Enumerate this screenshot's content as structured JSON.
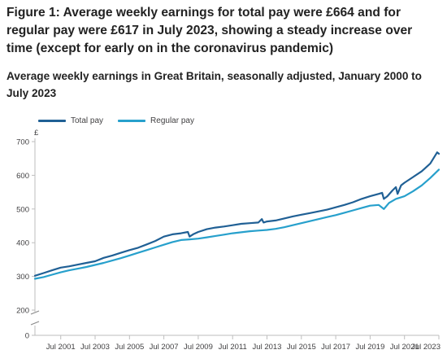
{
  "title": "Figure 1: Average weekly earnings for total pay were £664 and for regular pay were £617 in July 2023, showing a steady increase over time (except for early on in the coronavirus pandemic)",
  "subtitle": "Average weekly earnings in Great Britain, seasonally adjusted, January 2000 to July 2023",
  "colors": {
    "total": "#206095",
    "regular": "#27a0cc",
    "axis": "#bebebe",
    "text": "#414042"
  },
  "chart_data": {
    "type": "line",
    "ylabel": "£",
    "ylim": [
      0,
      700
    ],
    "yticks": [
      0,
      200,
      300,
      400,
      500,
      600,
      700
    ],
    "axis_break": true,
    "xlim": [
      2000.0,
      2023.5
    ],
    "xtick_labels": [
      "Jul 2001",
      "Jul 2003",
      "Jul 2005",
      "Jul 2007",
      "Jul 2009",
      "Jul 2011",
      "Jul 2013",
      "Jul 2015",
      "Jul 2017",
      "Jul 2019",
      "Jul 2021",
      "Jul 2023"
    ],
    "xtick_values": [
      2001.5,
      2003.5,
      2005.5,
      2007.5,
      2009.5,
      2011.5,
      2013.5,
      2015.5,
      2017.5,
      2019.5,
      2021.5,
      2023.5
    ],
    "grid": false,
    "legend": "top-left",
    "series": [
      {
        "name": "Total pay",
        "color": "#206095",
        "points": [
          [
            2000.0,
            302
          ],
          [
            2000.5,
            310
          ],
          [
            2001.0,
            318
          ],
          [
            2001.5,
            326
          ],
          [
            2002.0,
            330
          ],
          [
            2002.5,
            335
          ],
          [
            2003.0,
            340
          ],
          [
            2003.5,
            345
          ],
          [
            2004.0,
            355
          ],
          [
            2004.5,
            362
          ],
          [
            2005.0,
            370
          ],
          [
            2005.5,
            378
          ],
          [
            2006.0,
            385
          ],
          [
            2006.5,
            395
          ],
          [
            2007.0,
            405
          ],
          [
            2007.5,
            418
          ],
          [
            2008.0,
            425
          ],
          [
            2008.5,
            428
          ],
          [
            2008.9,
            432
          ],
          [
            2009.0,
            418
          ],
          [
            2009.2,
            425
          ],
          [
            2009.5,
            432
          ],
          [
            2010.0,
            440
          ],
          [
            2010.5,
            445
          ],
          [
            2011.0,
            448
          ],
          [
            2011.5,
            452
          ],
          [
            2012.0,
            456
          ],
          [
            2012.5,
            458
          ],
          [
            2013.0,
            460
          ],
          [
            2013.2,
            470
          ],
          [
            2013.3,
            460
          ],
          [
            2013.5,
            463
          ],
          [
            2014.0,
            466
          ],
          [
            2014.5,
            472
          ],
          [
            2015.0,
            478
          ],
          [
            2015.5,
            483
          ],
          [
            2016.0,
            488
          ],
          [
            2016.5,
            493
          ],
          [
            2017.0,
            498
          ],
          [
            2017.5,
            505
          ],
          [
            2018.0,
            512
          ],
          [
            2018.5,
            520
          ],
          [
            2019.0,
            530
          ],
          [
            2019.5,
            538
          ],
          [
            2020.0,
            545
          ],
          [
            2020.2,
            548
          ],
          [
            2020.3,
            530
          ],
          [
            2020.5,
            538
          ],
          [
            2020.8,
            555
          ],
          [
            2021.0,
            565
          ],
          [
            2021.1,
            545
          ],
          [
            2021.3,
            570
          ],
          [
            2021.5,
            578
          ],
          [
            2022.0,
            595
          ],
          [
            2022.5,
            612
          ],
          [
            2023.0,
            635
          ],
          [
            2023.3,
            660
          ],
          [
            2023.4,
            668
          ],
          [
            2023.5,
            664
          ]
        ]
      },
      {
        "name": "Regular pay",
        "color": "#27a0cc",
        "points": [
          [
            2000.0,
            293
          ],
          [
            2000.5,
            298
          ],
          [
            2001.0,
            305
          ],
          [
            2001.5,
            312
          ],
          [
            2002.0,
            318
          ],
          [
            2002.5,
            323
          ],
          [
            2003.0,
            328
          ],
          [
            2003.5,
            334
          ],
          [
            2004.0,
            340
          ],
          [
            2004.5,
            347
          ],
          [
            2005.0,
            354
          ],
          [
            2005.5,
            362
          ],
          [
            2006.0,
            370
          ],
          [
            2006.5,
            378
          ],
          [
            2007.0,
            386
          ],
          [
            2007.5,
            394
          ],
          [
            2008.0,
            402
          ],
          [
            2008.5,
            408
          ],
          [
            2009.0,
            410
          ],
          [
            2009.5,
            412
          ],
          [
            2010.0,
            416
          ],
          [
            2010.5,
            420
          ],
          [
            2011.0,
            424
          ],
          [
            2011.5,
            428
          ],
          [
            2012.0,
            431
          ],
          [
            2012.5,
            434
          ],
          [
            2013.0,
            436
          ],
          [
            2013.5,
            438
          ],
          [
            2014.0,
            441
          ],
          [
            2014.5,
            446
          ],
          [
            2015.0,
            452
          ],
          [
            2015.5,
            458
          ],
          [
            2016.0,
            464
          ],
          [
            2016.5,
            470
          ],
          [
            2017.0,
            476
          ],
          [
            2017.5,
            482
          ],
          [
            2018.0,
            489
          ],
          [
            2018.5,
            496
          ],
          [
            2019.0,
            503
          ],
          [
            2019.5,
            510
          ],
          [
            2020.0,
            512
          ],
          [
            2020.3,
            500
          ],
          [
            2020.6,
            518
          ],
          [
            2021.0,
            530
          ],
          [
            2021.5,
            538
          ],
          [
            2022.0,
            553
          ],
          [
            2022.5,
            570
          ],
          [
            2023.0,
            592
          ],
          [
            2023.5,
            617
          ]
        ]
      }
    ]
  }
}
